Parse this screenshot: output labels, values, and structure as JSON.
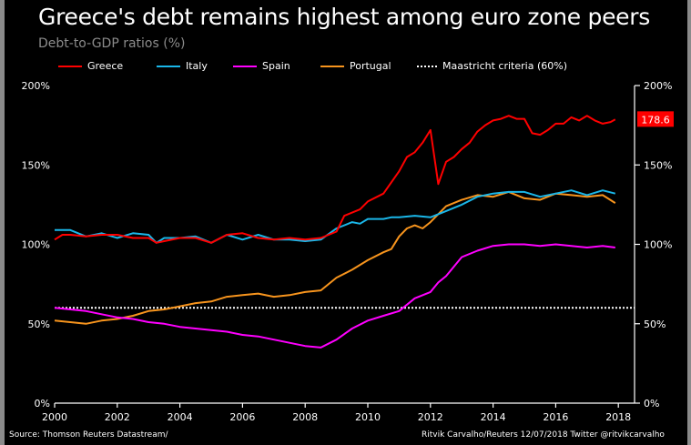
{
  "chart_data": {
    "type": "line",
    "title": "Greece's debt remains highest among euro zone peers",
    "subtitle": "Debt-to-GDP ratios (%)",
    "xlabel": "",
    "ylabel": "",
    "xlim": [
      2000,
      2018
    ],
    "ylim": [
      0,
      200
    ],
    "x_ticks": [
      2000,
      2002,
      2004,
      2006,
      2008,
      2010,
      2012,
      2014,
      2016,
      2018
    ],
    "y_ticks": [
      0,
      50,
      100,
      150,
      200
    ],
    "y_tick_labels": [
      "0%",
      "50%",
      "100%",
      "150%",
      "200%"
    ],
    "grid": false,
    "legend_position": "top-left",
    "annotation": {
      "label": "178.6",
      "series": "Greece",
      "value": 178.6,
      "color": "#ff0000"
    },
    "reference_line": {
      "name": "Maastricht criteria (60%)",
      "value": 60,
      "color": "#ffffff",
      "style": "dotted"
    },
    "series": [
      {
        "name": "Greece",
        "color": "#ff0000",
        "x": [
          2000,
          2000.25,
          2000.5,
          2001,
          2001.5,
          2002,
          2002.5,
          2003,
          2003.25,
          2003.5,
          2004,
          2004.5,
          2005,
          2005.5,
          2006,
          2006.5,
          2007,
          2007.5,
          2008,
          2008.5,
          2009,
          2009.25,
          2009.75,
          2010,
          2010.5,
          2010.75,
          2011,
          2011.25,
          2011.5,
          2011.75,
          2012,
          2012.25,
          2012.5,
          2012.75,
          2013,
          2013.25,
          2013.5,
          2013.75,
          2014,
          2014.25,
          2014.5,
          2014.75,
          2015,
          2015.25,
          2015.5,
          2015.75,
          2016,
          2016.25,
          2016.5,
          2016.75,
          2017,
          2017.25,
          2017.5,
          2017.75,
          2017.9
        ],
        "values": [
          103,
          106,
          106,
          105,
          106,
          106,
          104,
          104,
          101,
          102,
          104,
          104,
          101,
          106,
          107,
          104,
          103,
          104,
          103,
          104,
          108,
          118,
          122,
          127,
          132,
          139,
          146,
          155,
          158,
          164,
          172,
          138,
          152,
          155,
          160,
          164,
          171,
          175,
          178,
          179,
          181,
          179,
          179,
          170,
          169,
          172,
          176,
          176,
          180,
          178,
          181,
          178,
          176,
          177,
          178.6
        ]
      },
      {
        "name": "Italy",
        "color": "#1ab6e8",
        "x": [
          2000,
          2000.5,
          2001,
          2001.5,
          2002,
          2002.5,
          2003,
          2003.25,
          2003.5,
          2004,
          2004.5,
          2005,
          2005.5,
          2006,
          2006.5,
          2007,
          2007.5,
          2008,
          2008.5,
          2009,
          2009.5,
          2009.75,
          2010,
          2010.5,
          2010.75,
          2011,
          2011.5,
          2012,
          2012.5,
          2013,
          2013.5,
          2014,
          2014.5,
          2015,
          2015.5,
          2016,
          2016.5,
          2017,
          2017.5,
          2017.9
        ],
        "values": [
          109,
          109,
          105,
          107,
          104,
          107,
          106,
          101,
          104,
          104,
          105,
          101,
          106,
          103,
          106,
          103,
          103,
          102,
          103,
          110,
          114,
          113,
          116,
          116,
          117,
          117,
          118,
          117,
          121,
          125,
          130,
          132,
          133,
          133,
          130,
          132,
          134,
          131,
          134,
          132
        ]
      },
      {
        "name": "Spain",
        "color": "#ff00ff",
        "x": [
          2000,
          2000.5,
          2001,
          2001.5,
          2002,
          2002.5,
          2003,
          2003.5,
          2004,
          2004.5,
          2005,
          2005.5,
          2006,
          2006.5,
          2007,
          2007.5,
          2008,
          2008.5,
          2009,
          2009.5,
          2010,
          2010.5,
          2011,
          2011.25,
          2011.5,
          2012,
          2012.25,
          2012.5,
          2013,
          2013.5,
          2014,
          2014.5,
          2015,
          2015.5,
          2016,
          2016.5,
          2017,
          2017.5,
          2017.9
        ],
        "values": [
          60,
          59,
          58,
          56,
          54,
          53,
          51,
          50,
          48,
          47,
          46,
          45,
          43,
          42,
          40,
          38,
          36,
          35,
          40,
          47,
          52,
          55,
          58,
          62,
          66,
          70,
          76,
          80,
          92,
          96,
          99,
          100,
          100,
          99,
          100,
          99,
          98,
          99,
          98
        ]
      },
      {
        "name": "Portugal",
        "color": "#f7941d",
        "x": [
          2000,
          2000.5,
          2001,
          2001.5,
          2002,
          2002.5,
          2003,
          2003.5,
          2004,
          2004.5,
          2005,
          2005.5,
          2006,
          2006.5,
          2007,
          2007.5,
          2008,
          2008.5,
          2009,
          2009.5,
          2010,
          2010.5,
          2010.75,
          2011,
          2011.25,
          2011.5,
          2011.75,
          2012,
          2012.5,
          2013,
          2013.5,
          2014,
          2014.5,
          2015,
          2015.5,
          2016,
          2016.5,
          2017,
          2017.5,
          2017.9
        ],
        "values": [
          52,
          51,
          50,
          52,
          53,
          55,
          58,
          59,
          61,
          63,
          64,
          67,
          68,
          69,
          67,
          68,
          70,
          71,
          79,
          84,
          90,
          95,
          97,
          105,
          110,
          112,
          110,
          114,
          124,
          128,
          131,
          130,
          133,
          129,
          128,
          132,
          131,
          130,
          131,
          126
        ]
      }
    ]
  },
  "footer": {
    "source": "Source: Thomson Reuters Datastream/",
    "credit": "Ritvik Carvalho/Reuters 12/07/2018 Twitter @ritvikcarvalho"
  }
}
